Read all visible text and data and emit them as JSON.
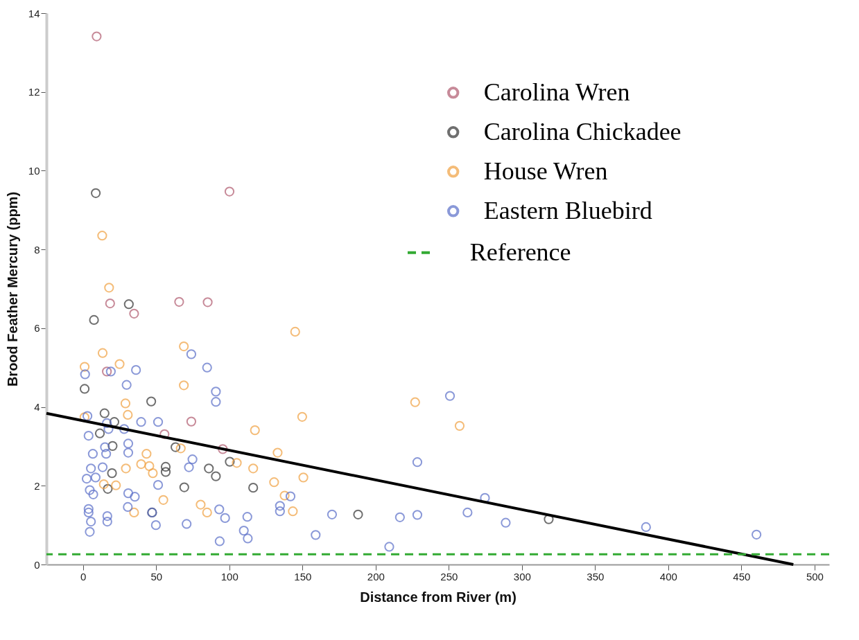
{
  "chart_data": {
    "type": "scatter",
    "xlabel": "Distance from River (m)",
    "ylabel": "Brood Feather Mercury (ppm)",
    "xlim": [
      -25,
      510
    ],
    "ylim": [
      0,
      14
    ],
    "xticks": [
      0,
      50,
      100,
      150,
      200,
      250,
      300,
      350,
      400,
      450,
      500
    ],
    "yticks": [
      0,
      2,
      4,
      6,
      8,
      10,
      12,
      14
    ],
    "grid": false,
    "legend": "top right",
    "marker": "circle",
    "series": [
      {
        "name": "Carolina Wren",
        "color": "#b05a6e",
        "x": [
          9.3,
          100.1,
          18.5,
          34.9,
          65.7,
          85.2,
          16.3,
          74,
          55.7,
          95.5
        ],
        "values": [
          13.41,
          9.47,
          6.63,
          6.37,
          6.67,
          6.66,
          4.9,
          3.63,
          3.31,
          2.93
        ]
      },
      {
        "name": "Carolina Chickadee",
        "color": "#333333",
        "x": [
          8.7,
          31.3,
          7.5,
          1.1,
          46.6,
          14.7,
          21.4,
          11.5,
          63.2,
          20.2,
          86,
          90.8,
          56.5,
          56.5,
          19.8,
          16.9,
          69.2,
          47.2,
          100.3,
          116.3,
          188,
          318.3
        ],
        "values": [
          9.43,
          6.61,
          6.21,
          4.46,
          4.14,
          3.84,
          3.62,
          3.33,
          2.98,
          3.01,
          2.44,
          2.24,
          2.48,
          2.35,
          2.32,
          1.92,
          1.96,
          1.32,
          2.61,
          1.95,
          1.27,
          1.15
        ]
      },
      {
        "name": "House Wren",
        "color": "#f0a040",
        "x": [
          13.1,
          17.8,
          13.4,
          1.1,
          25,
          68.9,
          68.9,
          29,
          30.6,
          1,
          66.8,
          43.4,
          39.7,
          45.3,
          47.7,
          29.3,
          14.2,
          22.5,
          54.9,
          34.9,
          80.4,
          84.8,
          145,
          149.8,
          117.5,
          133,
          105.1,
          116.3,
          150.6,
          130.6,
          137.8,
          143.4,
          227,
          257.4
        ],
        "values": [
          8.35,
          7.03,
          5.37,
          5.02,
          5.09,
          5.54,
          4.55,
          4.09,
          3.8,
          3.74,
          2.95,
          2.81,
          2.55,
          2.5,
          2.32,
          2.44,
          2.04,
          2.01,
          1.64,
          1.32,
          1.52,
          1.32,
          5.91,
          3.75,
          3.41,
          2.84,
          2.58,
          2.44,
          2.21,
          2.09,
          1.75,
          1.35,
          4.12,
          3.52
        ]
      },
      {
        "name": "Eastern Bluebird",
        "color": "#5a6ec8",
        "x": [
          1.4,
          19,
          36.2,
          29.8,
          74,
          84.8,
          90.8,
          90.8,
          3,
          39.7,
          51.3,
          16.3,
          3.8,
          28.1,
          17.4,
          15,
          30.9,
          30.9,
          6.7,
          15.8,
          74.8,
          72.4,
          5.4,
          13.4,
          8.6,
          2.5,
          4.6,
          7,
          51.3,
          30.9,
          35.4,
          30.6,
          47.2,
          93.1,
          3.8,
          3.8,
          5.4,
          16.6,
          16.6,
          4.6,
          49.8,
          70.8,
          93.4,
          141.8,
          134.6,
          134.6,
          97.1,
          112.3,
          170.2,
          109.9,
          112.6,
          159,
          250.8,
          228.5,
          274.7,
          216.6,
          228.5,
          262.8,
          288.9,
          384.8,
          460.3,
          209.3
        ],
        "values": [
          4.83,
          4.9,
          4.94,
          4.56,
          5.34,
          5.0,
          4.39,
          4.13,
          3.77,
          3.62,
          3.62,
          3.59,
          3.27,
          3.44,
          3.44,
          2.98,
          3.07,
          2.84,
          2.81,
          2.81,
          2.67,
          2.47,
          2.44,
          2.47,
          2.21,
          2.18,
          1.89,
          1.78,
          2.02,
          1.81,
          1.72,
          1.46,
          1.32,
          1.4,
          1.41,
          1.32,
          1.09,
          1.23,
          1.09,
          0.83,
          1.0,
          1.03,
          0.59,
          1.73,
          1.49,
          1.35,
          1.18,
          1.21,
          1.27,
          0.86,
          0.66,
          0.75,
          4.28,
          2.6,
          1.69,
          1.2,
          1.26,
          1.32,
          1.06,
          0.95,
          0.76,
          0.45
        ]
      },
      {
        "type": "line",
        "color": "#000000",
        "marker": "none",
        "line_style": "solid",
        "x": [
          -25,
          485.5
        ],
        "values": [
          3.84,
          0
        ]
      }
    ],
    "ref_lines": [
      {
        "axis": "y",
        "value": 0.26,
        "label": "Reference",
        "color": "#33aa33",
        "line_style": "dashed"
      }
    ]
  }
}
